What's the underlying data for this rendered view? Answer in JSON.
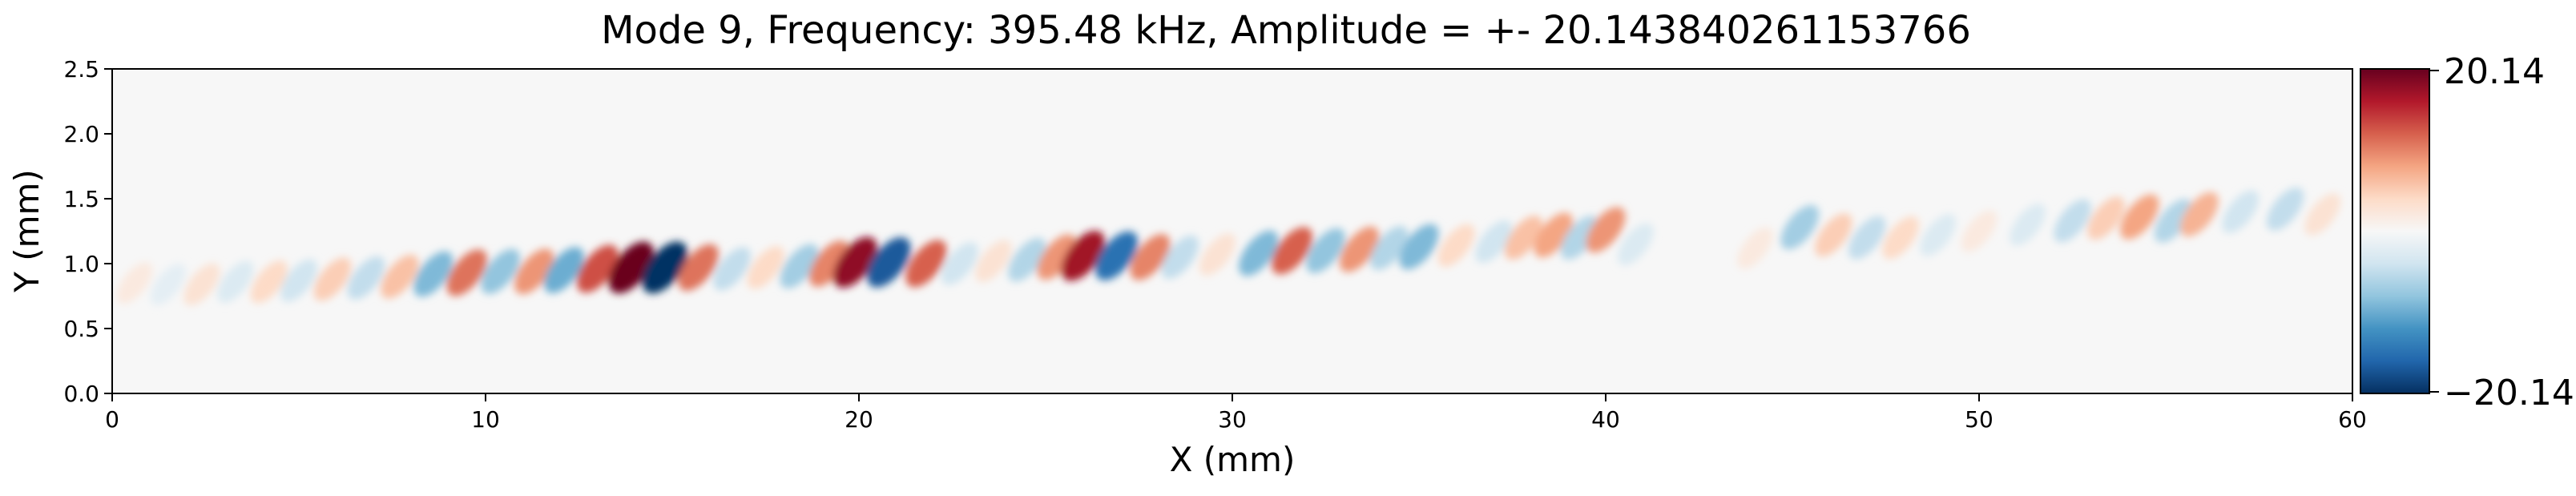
{
  "chart_data": {
    "type": "heatmap",
    "title": "Mode 9, Frequency: 395.48 kHz, Amplitude = +- 20.143840261153766",
    "xlabel": "X (mm)",
    "ylabel": "Y (mm)",
    "xlim": [
      0,
      60
    ],
    "ylim": [
      0,
      2.5
    ],
    "xticks": [
      0,
      10,
      20,
      30,
      40,
      50,
      60
    ],
    "xtick_labels": [
      "0",
      "10",
      "20",
      "30",
      "40",
      "50",
      "60"
    ],
    "yticks": [
      0.0,
      0.5,
      1.0,
      1.5,
      2.0,
      2.5
    ],
    "ytick_labels": [
      "0.0",
      "0.5",
      "1.0",
      "1.5",
      "2.0",
      "2.5"
    ],
    "colorbar": {
      "min": -20.14,
      "max": 20.14,
      "min_label": "−20.14",
      "max_label": "20.14",
      "colormap": "RdBu_r"
    },
    "features": [
      {
        "x": 0.6,
        "y": 0.85,
        "value": 2
      },
      {
        "x": 1.5,
        "y": 0.84,
        "value": -2
      },
      {
        "x": 2.4,
        "y": 0.84,
        "value": 3
      },
      {
        "x": 3.3,
        "y": 0.86,
        "value": -3
      },
      {
        "x": 4.2,
        "y": 0.86,
        "value": 4
      },
      {
        "x": 5.0,
        "y": 0.87,
        "value": -4
      },
      {
        "x": 5.9,
        "y": 0.88,
        "value": 5
      },
      {
        "x": 6.8,
        "y": 0.89,
        "value": -5
      },
      {
        "x": 7.7,
        "y": 0.9,
        "value": 6
      },
      {
        "x": 8.6,
        "y": 0.92,
        "value": -9
      },
      {
        "x": 9.5,
        "y": 0.93,
        "value": 11
      },
      {
        "x": 10.4,
        "y": 0.94,
        "value": -8
      },
      {
        "x": 11.3,
        "y": 0.94,
        "value": 9
      },
      {
        "x": 12.1,
        "y": 0.95,
        "value": -10
      },
      {
        "x": 13.0,
        "y": 0.96,
        "value": 13
      },
      {
        "x": 13.9,
        "y": 0.97,
        "value": 20
      },
      {
        "x": 14.8,
        "y": 0.97,
        "value": -20
      },
      {
        "x": 15.7,
        "y": 0.97,
        "value": 11
      },
      {
        "x": 16.6,
        "y": 0.96,
        "value": -5
      },
      {
        "x": 17.5,
        "y": 0.97,
        "value": 4
      },
      {
        "x": 18.4,
        "y": 0.98,
        "value": -7
      },
      {
        "x": 19.2,
        "y": 1.0,
        "value": 10
      },
      {
        "x": 19.9,
        "y": 1.01,
        "value": 18
      },
      {
        "x": 20.8,
        "y": 1.01,
        "value": -17
      },
      {
        "x": 21.8,
        "y": 1.0,
        "value": 12
      },
      {
        "x": 22.7,
        "y": 1.0,
        "value": -4
      },
      {
        "x": 23.6,
        "y": 1.02,
        "value": 3
      },
      {
        "x": 24.5,
        "y": 1.03,
        "value": -6
      },
      {
        "x": 25.3,
        "y": 1.05,
        "value": 9
      },
      {
        "x": 26.0,
        "y": 1.06,
        "value": 17
      },
      {
        "x": 26.9,
        "y": 1.06,
        "value": -15
      },
      {
        "x": 27.8,
        "y": 1.05,
        "value": 10
      },
      {
        "x": 28.6,
        "y": 1.05,
        "value": -5
      },
      {
        "x": 29.6,
        "y": 1.07,
        "value": 3
      },
      {
        "x": 30.7,
        "y": 1.08,
        "value": -9
      },
      {
        "x": 31.6,
        "y": 1.1,
        "value": 12
      },
      {
        "x": 32.5,
        "y": 1.1,
        "value": -8
      },
      {
        "x": 33.4,
        "y": 1.11,
        "value": 9
      },
      {
        "x": 34.2,
        "y": 1.12,
        "value": -6
      },
      {
        "x": 35.0,
        "y": 1.13,
        "value": -9
      },
      {
        "x": 36.0,
        "y": 1.14,
        "value": 4
      },
      {
        "x": 37.0,
        "y": 1.17,
        "value": -4
      },
      {
        "x": 37.8,
        "y": 1.2,
        "value": 6
      },
      {
        "x": 38.6,
        "y": 1.22,
        "value": 8
      },
      {
        "x": 39.3,
        "y": 1.2,
        "value": -6
      },
      {
        "x": 40.0,
        "y": 1.26,
        "value": 9
      },
      {
        "x": 40.8,
        "y": 1.15,
        "value": -3
      },
      {
        "x": 44.0,
        "y": 1.12,
        "value": 2
      },
      {
        "x": 45.2,
        "y": 1.28,
        "value": -7
      },
      {
        "x": 46.1,
        "y": 1.22,
        "value": 5
      },
      {
        "x": 47.0,
        "y": 1.2,
        "value": -5
      },
      {
        "x": 47.9,
        "y": 1.2,
        "value": 4
      },
      {
        "x": 48.9,
        "y": 1.22,
        "value": -3
      },
      {
        "x": 50.0,
        "y": 1.25,
        "value": 2
      },
      {
        "x": 51.3,
        "y": 1.3,
        "value": -3
      },
      {
        "x": 52.5,
        "y": 1.33,
        "value": -5
      },
      {
        "x": 53.4,
        "y": 1.35,
        "value": 5
      },
      {
        "x": 54.3,
        "y": 1.36,
        "value": 8
      },
      {
        "x": 55.2,
        "y": 1.33,
        "value": -6
      },
      {
        "x": 55.9,
        "y": 1.38,
        "value": 7
      },
      {
        "x": 57.0,
        "y": 1.4,
        "value": -4
      },
      {
        "x": 58.2,
        "y": 1.42,
        "value": -5
      },
      {
        "x": 59.2,
        "y": 1.38,
        "value": 3
      }
    ]
  }
}
